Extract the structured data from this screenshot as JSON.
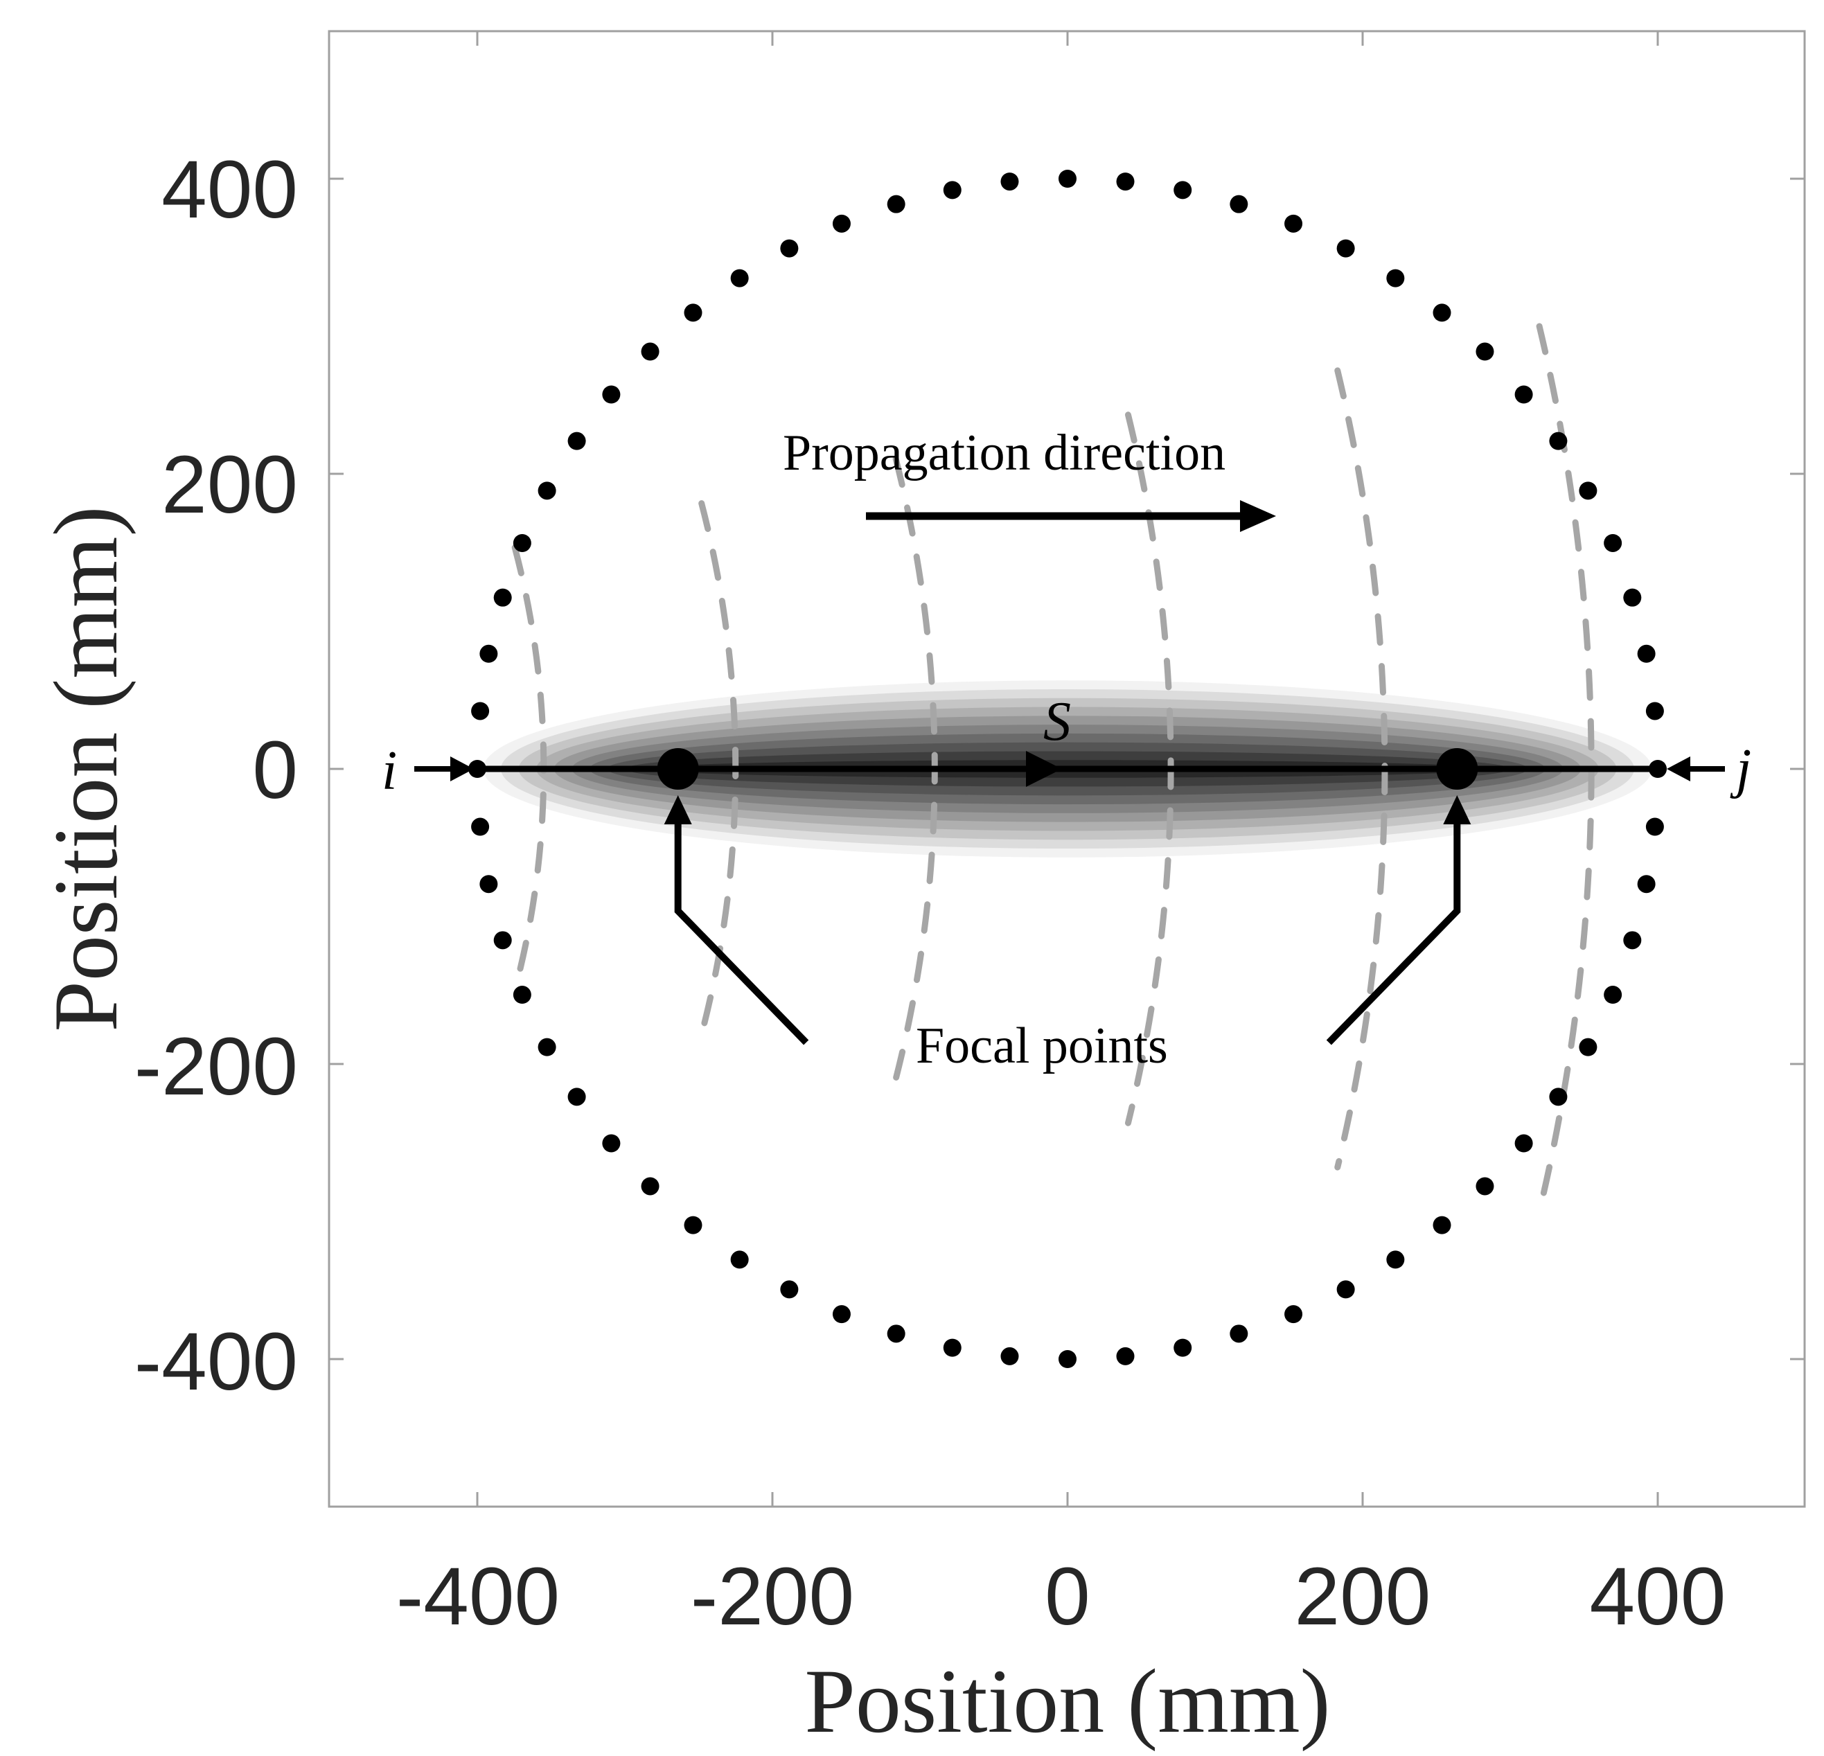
{
  "axes": {
    "xlabel": "Position (mm)",
    "ylabel": "Position (mm)",
    "xlim": [
      -500,
      500
    ],
    "ylim": [
      -500,
      500
    ],
    "xticks": [
      "-400",
      "-200",
      "0",
      "200",
      "400"
    ],
    "yticks": [
      "400",
      "200",
      "0",
      "-200",
      "-400"
    ]
  },
  "sensor_ring": {
    "radius_mm": 400,
    "count": 64,
    "color": "#000000"
  },
  "ray": {
    "start": [
      -400,
      0
    ],
    "end": [
      400,
      0
    ],
    "label": "S",
    "color": "#000000"
  },
  "focal_points": {
    "label": "Focal points",
    "points": [
      [
        -264,
        0
      ],
      [
        264,
        0
      ]
    ]
  },
  "endpoints": {
    "left_label": "i",
    "right_label": "j"
  },
  "propagation": {
    "label": "Propagation direction"
  },
  "wavefronts": {
    "color": "#a6a6a6",
    "front_x_mm": [
      -355,
      -225,
      -90,
      70,
      215,
      355
    ]
  },
  "sensitivity_ellipse": {
    "semi_major_mm": 400,
    "semi_minor_mm": 60,
    "levels": 10
  }
}
